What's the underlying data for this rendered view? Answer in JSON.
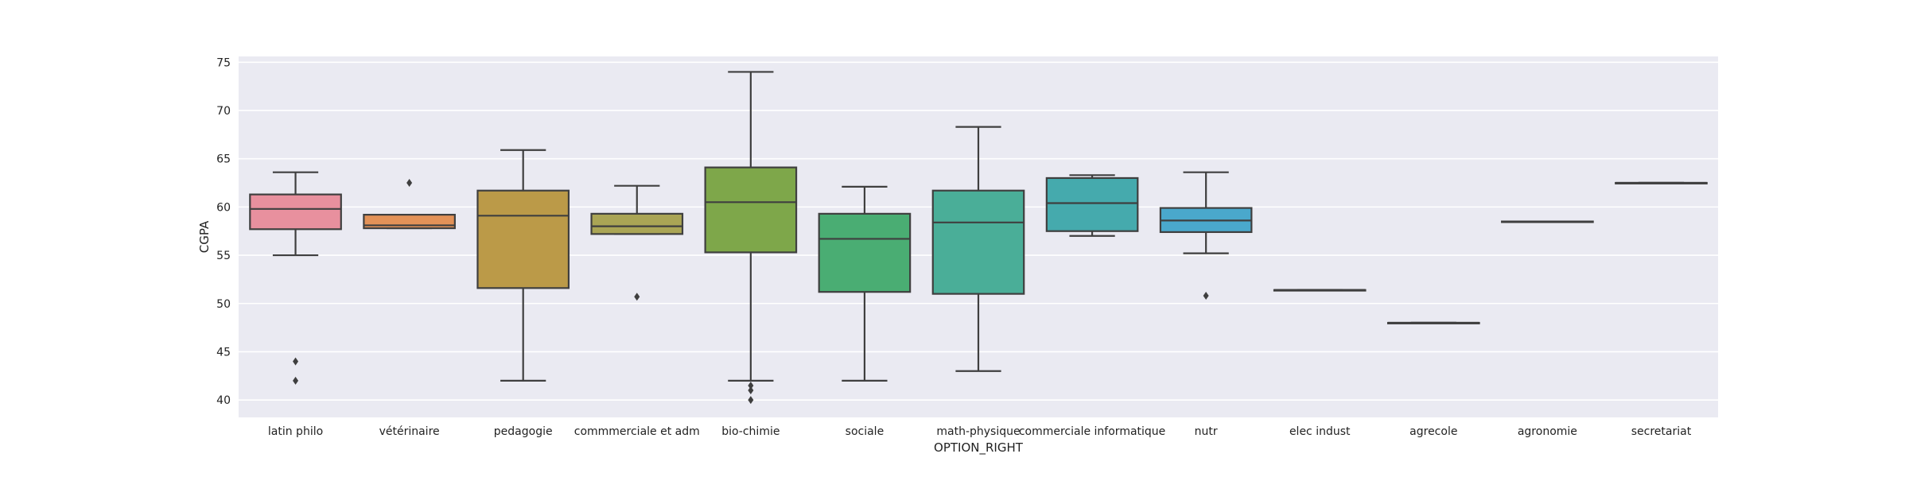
{
  "chart_data": {
    "type": "box",
    "xlabel": "OPTION_RIGHT",
    "ylabel": "CGPA",
    "ylim": [
      38.2,
      75.6
    ],
    "yticks": [
      40,
      45,
      50,
      55,
      60,
      65,
      70,
      75
    ],
    "grid": true,
    "categories": [
      "latin philo",
      "vétérinaire",
      "pedagogie",
      "commmerciale et adm",
      "bio-chimie",
      "sociale",
      "math-physique",
      "commerciale informatique",
      "nutr",
      "elec indust",
      "agrecole",
      "agronomie",
      "secretariat"
    ],
    "boxes": [
      {
        "category": "latin philo",
        "color": "#e8909e",
        "whisker_low": 55.0,
        "q1": 57.7,
        "median": 59.8,
        "q3": 61.3,
        "whisker_high": 63.6,
        "outliers": [
          44.0,
          42.0
        ]
      },
      {
        "category": "vétérinaire",
        "color": "#e39258",
        "whisker_low": 57.8,
        "q1": 57.8,
        "median": 58.1,
        "q3": 59.2,
        "whisker_high": 59.2,
        "outliers": [
          62.5
        ]
      },
      {
        "category": "pedagogie",
        "color": "#bb9a48",
        "whisker_low": 42.0,
        "q1": 51.6,
        "median": 59.1,
        "q3": 61.7,
        "whisker_high": 65.9,
        "outliers": []
      },
      {
        "category": "commmerciale et adm",
        "color": "#aaa555",
        "whisker_low": 57.2,
        "q1": 57.2,
        "median": 58.0,
        "q3": 59.3,
        "whisker_high": 62.2,
        "outliers": [
          50.7
        ]
      },
      {
        "category": "bio-chimie",
        "color": "#7ea74a",
        "whisker_low": 42.0,
        "q1": 55.3,
        "median": 60.5,
        "q3": 64.1,
        "whisker_high": 74.0,
        "outliers": [
          41.5,
          41.0,
          40.0
        ]
      },
      {
        "category": "sociale",
        "color": "#4aad73",
        "whisker_low": 42.0,
        "q1": 51.2,
        "median": 56.7,
        "q3": 59.3,
        "whisker_high": 62.1,
        "outliers": []
      },
      {
        "category": "math-physique",
        "color": "#4aae98",
        "whisker_low": 43.0,
        "q1": 51.0,
        "median": 58.4,
        "q3": 61.7,
        "whisker_high": 68.3,
        "outliers": []
      },
      {
        "category": "commerciale informatique",
        "color": "#45aaad",
        "whisker_low": 57.0,
        "q1": 57.5,
        "median": 60.4,
        "q3": 63.0,
        "whisker_high": 63.3,
        "outliers": []
      },
      {
        "category": "nutr",
        "color": "#4aa8cc",
        "whisker_low": 55.2,
        "q1": 57.4,
        "median": 58.6,
        "q3": 59.9,
        "whisker_high": 63.6,
        "outliers": [
          50.8
        ]
      },
      {
        "category": "elec indust",
        "color": "#7fa3da",
        "whisker_low": 51.4,
        "q1": 51.4,
        "median": 51.4,
        "q3": 51.4,
        "whisker_high": 51.4,
        "outliers": []
      },
      {
        "category": "agrecole",
        "color": "#a99ae0",
        "whisker_low": 48.0,
        "q1": 48.0,
        "median": 48.0,
        "q3": 48.0,
        "whisker_high": 48.0,
        "outliers": []
      },
      {
        "category": "agronomie",
        "color": "#d58fd7",
        "whisker_low": 58.5,
        "q1": 58.5,
        "median": 58.5,
        "q3": 58.5,
        "whisker_high": 58.5,
        "outliers": []
      },
      {
        "category": "secretariat",
        "color": "#e18ec0",
        "whisker_low": 62.5,
        "q1": 62.5,
        "median": 62.5,
        "q3": 62.5,
        "whisker_high": 62.5,
        "outliers": []
      }
    ],
    "colors": {
      "plot_background": "#eaeaf2",
      "grid": "#ffffff",
      "box_edge": "#3f3f3f"
    }
  }
}
